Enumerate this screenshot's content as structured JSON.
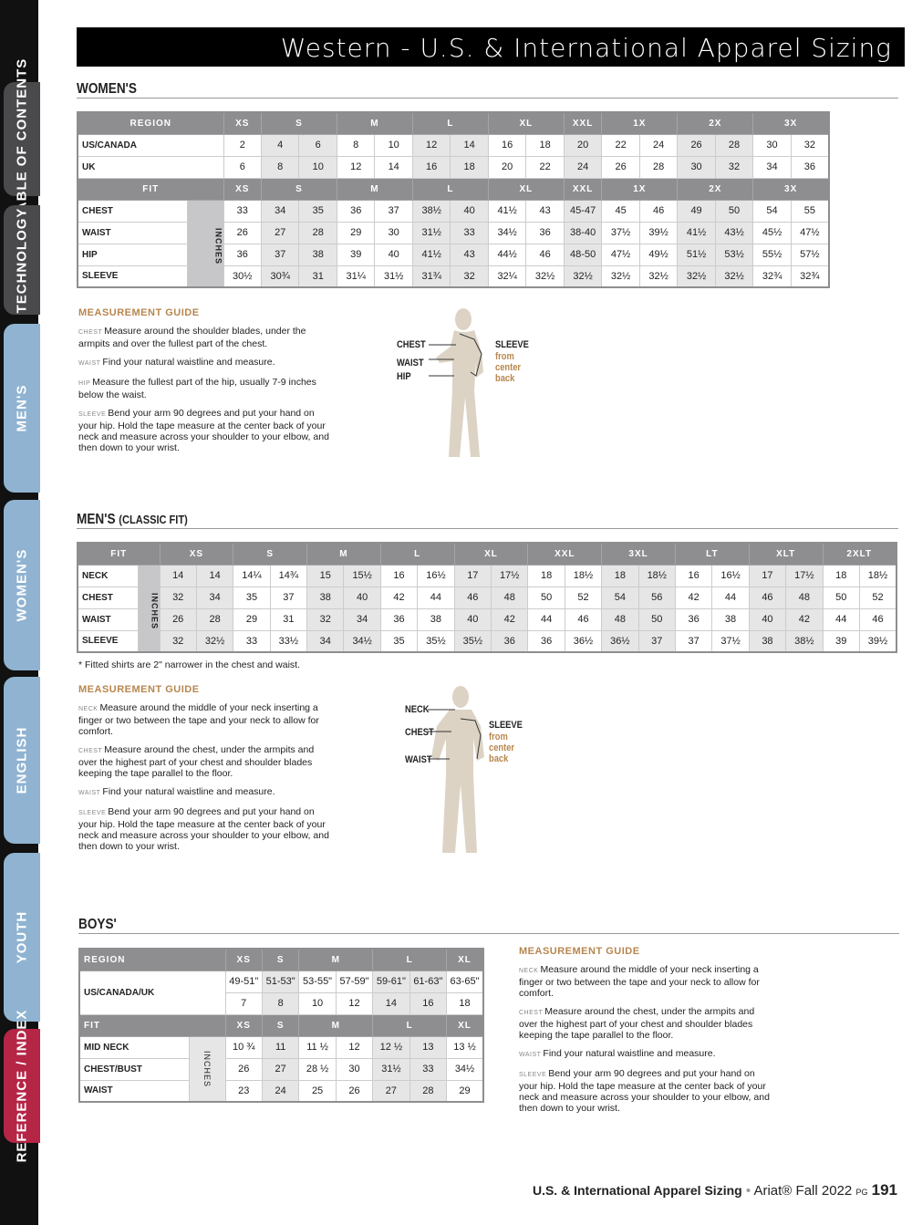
{
  "title": "Western - U.S. & International Apparel Sizing",
  "tabs": [
    {
      "label": "TABLE OF CONTENTS",
      "color": "#4a4a4c"
    },
    {
      "label": "TECHNOLOGY",
      "color": "#4a4a4c"
    },
    {
      "label": "MEN'S",
      "color": "#8fb3d1"
    },
    {
      "label": "WOMEN'S",
      "color": "#8fb3d1"
    },
    {
      "label": "ENGLISH",
      "color": "#8fb3d1"
    },
    {
      "label": "YOUTH",
      "color": "#8fb3d1"
    },
    {
      "label": "REFERENCE / INDEX",
      "color": "#b52545"
    }
  ],
  "colors": {
    "header": "#8e8e90",
    "shade": "#e6e6e6",
    "guide": "#b8864e",
    "figure": "#dcd3c4"
  },
  "inches_label": "INCHES",
  "womens": {
    "title": "WOMEN'S",
    "region_header": "REGION",
    "fit_header": "FIT",
    "groups": [
      [
        "XS",
        1
      ],
      [
        "S",
        2
      ],
      [
        "M",
        2
      ],
      [
        "L",
        2
      ],
      [
        "XL",
        2
      ],
      [
        "XXL",
        1
      ],
      [
        "1X",
        2
      ],
      [
        "2X",
        2
      ],
      [
        "3X",
        2
      ]
    ],
    "region_rows": [
      {
        "label": "US/CANADA",
        "values": [
          "2",
          "4",
          "6",
          "8",
          "10",
          "12",
          "14",
          "16",
          "18",
          "20",
          "22",
          "24",
          "26",
          "28",
          "30",
          "32"
        ]
      },
      {
        "label": "UK",
        "values": [
          "6",
          "8",
          "10",
          "12",
          "14",
          "16",
          "18",
          "20",
          "22",
          "24",
          "26",
          "28",
          "30",
          "32",
          "34",
          "36"
        ]
      }
    ],
    "fit_rows": [
      {
        "label": "CHEST",
        "values": [
          "33",
          "34",
          "35",
          "36",
          "37",
          "38½",
          "40",
          "41½",
          "43",
          "45-47",
          "45",
          "46",
          "49",
          "50",
          "54",
          "55"
        ]
      },
      {
        "label": "WAIST",
        "values": [
          "26",
          "27",
          "28",
          "29",
          "30",
          "31½",
          "33",
          "34½",
          "36",
          "38-40",
          "37½",
          "39½",
          "41½",
          "43½",
          "45½",
          "47½"
        ]
      },
      {
        "label": "HIP",
        "values": [
          "36",
          "37",
          "38",
          "39",
          "40",
          "41½",
          "43",
          "44½",
          "46",
          "48-50",
          "47½",
          "49½",
          "51½",
          "53½",
          "55½",
          "57½"
        ]
      },
      {
        "label": "SLEEVE",
        "values": [
          "30½",
          "30¾",
          "31",
          "31¼",
          "31½",
          "31¾",
          "32",
          "32¼",
          "32½",
          "32½",
          "32½",
          "32½",
          "32½",
          "32½",
          "32¾",
          "32¾"
        ]
      }
    ],
    "guide": {
      "title": "MEASUREMENT GUIDE",
      "items": [
        {
          "key": "CHEST",
          "text": "Measure around the shoulder blades, under the armpits and over the fullest part of the chest."
        },
        {
          "key": "WAIST",
          "text": "Find your natural waistline and measure."
        },
        {
          "key": "HIP",
          "text": "Measure the fullest part of the hip, usually 7-9 inches below the waist."
        },
        {
          "key": "SLEEVE",
          "text": "Bend your arm 90 degrees and put your hand on your hip. Hold the tape measure at the center back of your neck and measure across your shoulder to your elbow, and then down to your wrist."
        }
      ]
    },
    "figure": {
      "chest": "CHEST",
      "waist": "WAIST",
      "hip": "HIP",
      "sleeve": "SLEEVE",
      "sleeve_note": [
        "from",
        "center",
        "back"
      ]
    }
  },
  "mens": {
    "title": "MEN'S",
    "subtitle": "(CLASSIC FIT)",
    "fit_header": "FIT",
    "groups": [
      [
        "XS",
        2
      ],
      [
        "S",
        2
      ],
      [
        "M",
        2
      ],
      [
        "L",
        2
      ],
      [
        "XL",
        2
      ],
      [
        "XXL",
        2
      ],
      [
        "3XL",
        2
      ],
      [
        "LT",
        2
      ],
      [
        "XLT",
        2
      ],
      [
        "2XLT",
        2
      ]
    ],
    "fit_rows": [
      {
        "label": "NECK",
        "values": [
          "14",
          "14",
          "14¼",
          "14¾",
          "15",
          "15½",
          "16",
          "16½",
          "17",
          "17½",
          "18",
          "18½",
          "18",
          "18½",
          "16",
          "16½",
          "17",
          "17½",
          "18",
          "18½"
        ]
      },
      {
        "label": "CHEST",
        "values": [
          "32",
          "34",
          "35",
          "37",
          "38",
          "40",
          "42",
          "44",
          "46",
          "48",
          "50",
          "52",
          "54",
          "56",
          "42",
          "44",
          "46",
          "48",
          "50",
          "52"
        ]
      },
      {
        "label": "WAIST",
        "values": [
          "26",
          "28",
          "29",
          "31",
          "32",
          "34",
          "36",
          "38",
          "40",
          "42",
          "44",
          "46",
          "48",
          "50",
          "36",
          "38",
          "40",
          "42",
          "44",
          "46"
        ]
      },
      {
        "label": "SLEEVE",
        "values": [
          "32",
          "32½",
          "33",
          "33½",
          "34",
          "34½",
          "35",
          "35½",
          "35½",
          "36",
          "36",
          "36½",
          "36½",
          "37",
          "37",
          "37½",
          "38",
          "38½",
          "39",
          "39½"
        ]
      }
    ],
    "note": "* Fitted shirts are 2\" narrower in the chest and waist.",
    "guide": {
      "title": "MEASUREMENT GUIDE",
      "items": [
        {
          "key": "NECK",
          "text": "Measure around the middle of your neck inserting a finger or two between the tape and your neck to allow for comfort."
        },
        {
          "key": "CHEST",
          "text": "Measure around the chest, under the armpits and over the highest part of your chest and shoulder blades keeping the tape parallel to the floor."
        },
        {
          "key": "WAIST",
          "text": "Find your natural waistline and measure."
        },
        {
          "key": "SLEEVE",
          "text": "Bend your arm 90 degrees and put your hand on your hip. Hold the tape measure at the center back of your neck and measure across your shoulder to your elbow, and then down to your wrist."
        }
      ]
    },
    "figure": {
      "neck": "NECK",
      "chest": "CHEST",
      "waist": "WAIST",
      "sleeve": "SLEEVE",
      "sleeve_note": [
        "from",
        "center",
        "back"
      ]
    }
  },
  "boys": {
    "title": "BOYS'",
    "region_header": "REGION",
    "fit_header": "FIT",
    "groups": [
      [
        "XS",
        1
      ],
      [
        "S",
        1
      ],
      [
        "M",
        2
      ],
      [
        "L",
        2
      ],
      [
        "XL",
        1
      ]
    ],
    "region_label": "US/CANADA/UK",
    "region_rows": [
      {
        "values": [
          "49-51\"",
          "51-53\"",
          "53-55\"",
          "57-59\"",
          "59-61\"",
          "61-63\"",
          "63-65\""
        ]
      },
      {
        "values": [
          "7",
          "8",
          "10",
          "12",
          "14",
          "16",
          "18"
        ]
      }
    ],
    "fit_rows": [
      {
        "label": "MID NECK",
        "values": [
          "10 ¾",
          "11",
          "11 ½",
          "12",
          "12 ½",
          "13",
          "13 ½"
        ]
      },
      {
        "label": "CHEST/BUST",
        "values": [
          "26",
          "27",
          "28 ½",
          "30",
          "31½",
          "33",
          "34½"
        ]
      },
      {
        "label": "WAIST",
        "values": [
          "23",
          "24",
          "25",
          "26",
          "27",
          "28",
          "29"
        ]
      }
    ],
    "guide": {
      "title": "MEASUREMENT GUIDE",
      "items": [
        {
          "key": "NECK",
          "text": "Measure around the middle of your neck inserting a finger or two between the tape and your neck to allow for comfort."
        },
        {
          "key": "CHEST",
          "text": "Measure around the chest, under the armpits and over the highest part of your chest and shoulder blades keeping the tape parallel to the floor."
        },
        {
          "key": "WAIST",
          "text": "Find your natural waistline and measure."
        },
        {
          "key": "SLEEVE",
          "text": "Bend your arm 90 degrees and put your hand on your hip. Hold the tape measure at the center back of your neck and measure across your shoulder to your elbow, and then down to your wrist."
        }
      ]
    }
  },
  "footer": {
    "section": "U.S. & International Apparel Sizing",
    "separator": "•",
    "brand": "Ariat®",
    "season": "Fall 2022",
    "pg_label": "PG",
    "page": "191"
  }
}
